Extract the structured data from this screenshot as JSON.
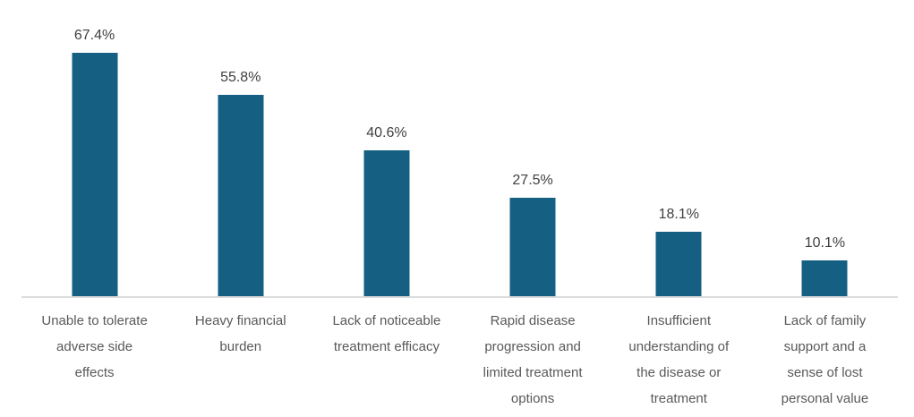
{
  "chart_data": {
    "type": "bar",
    "title": "",
    "xlabel": "",
    "ylabel": "",
    "categories": [
      "Unable to tolerate adverse side effects",
      "Heavy financial burden",
      "Lack of noticeable treatment efficacy",
      "Rapid disease progression and limited treatment options",
      "Insufficient understanding of the disease or treatment",
      "Lack of family support and a sense of lost personal value"
    ],
    "category_lines": [
      [
        "Unable to tolerate",
        "adverse side",
        "effects"
      ],
      [
        "Heavy financial",
        "burden"
      ],
      [
        "Lack of noticeable",
        "treatment efficacy"
      ],
      [
        "Rapid disease",
        "progression and",
        "limited treatment",
        "options"
      ],
      [
        "Insufficient",
        "understanding of",
        "the disease or",
        "treatment"
      ],
      [
        "Lack of family",
        "support and a",
        "sense of lost",
        "personal value"
      ]
    ],
    "values": [
      67.4,
      55.8,
      40.6,
      27.5,
      18.1,
      10.1
    ],
    "value_labels": [
      "67.4%",
      "55.8%",
      "40.6%",
      "27.5%",
      "18.1%",
      "10.1%"
    ],
    "ylim": [
      0,
      80
    ],
    "grid": false,
    "legend": false,
    "y_axis_visible": false,
    "data_labels": "above bars",
    "bar_color": "#156082",
    "value_label_color": "#404040",
    "category_label_color": "#595959",
    "axis_line_color": "#dbdbdb",
    "background_color": "#ffffff"
  }
}
